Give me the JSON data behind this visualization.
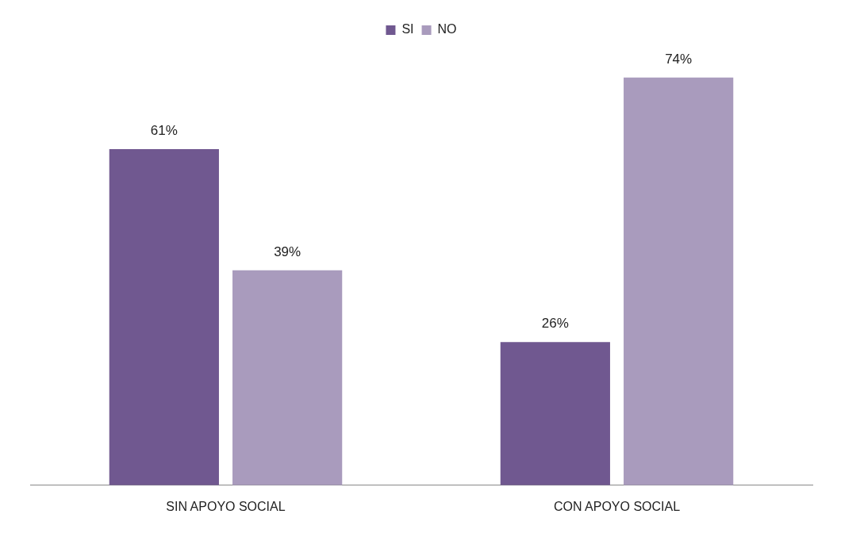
{
  "chart_data": {
    "type": "bar",
    "categories": [
      "SIN APOYO SOCIAL",
      "CON APOYO SOCIAL"
    ],
    "series": [
      {
        "name": "SI",
        "color": "#705890",
        "values": [
          61,
          26
        ],
        "value_labels": [
          "61%",
          "26%"
        ]
      },
      {
        "name": "NO",
        "color": "#a99bbd",
        "values": [
          39,
          74
        ],
        "value_labels": [
          "39%",
          "74%"
        ]
      }
    ],
    "legend": "top",
    "grid": false
  }
}
